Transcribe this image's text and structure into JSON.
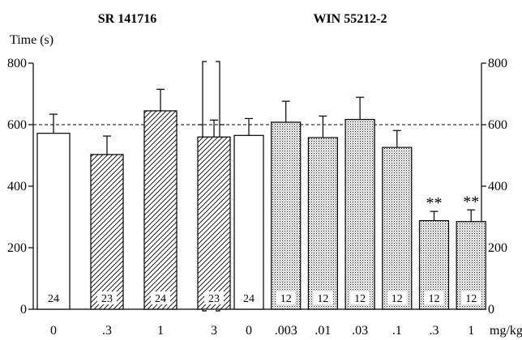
{
  "chart_data": {
    "type": "bar",
    "ylabel": "Time (s)",
    "xlabel": "mg/kg",
    "ylim": [
      0,
      800
    ],
    "yticks": [
      0,
      200,
      400,
      600,
      800
    ],
    "reference_line": 600,
    "grid": false,
    "panels": [
      {
        "title": "SR 141716",
        "categories": [
          "0",
          ".3",
          "1",
          "3"
        ],
        "values": [
          572,
          503,
          645,
          560
        ],
        "errors": [
          62,
          60,
          70,
          55
        ],
        "n": [
          "24",
          "23",
          "24",
          "23"
        ],
        "fill": [
          "white",
          "hatch",
          "hatch",
          "hatch"
        ],
        "significance": [
          "",
          "",
          "",
          ""
        ]
      },
      {
        "title": "WIN 55212-2",
        "categories": [
          "0",
          ".003",
          ".01",
          ".03",
          ".1",
          ".3",
          "1"
        ],
        "values": [
          565,
          608,
          558,
          617,
          526,
          288,
          285
        ],
        "errors": [
          55,
          68,
          70,
          72,
          55,
          30,
          38
        ],
        "n": [
          "24",
          "12",
          "12",
          "12",
          "12",
          "12",
          "12"
        ],
        "fill": [
          "white",
          "dots",
          "dots",
          "dots",
          "dots",
          "dots",
          "dots"
        ],
        "significance": [
          "",
          "",
          "",
          "",
          "",
          "**",
          "**"
        ]
      }
    ]
  }
}
